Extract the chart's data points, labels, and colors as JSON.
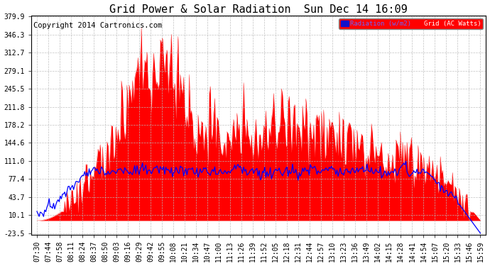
{
  "title": "Grid Power & Solar Radiation  Sun Dec 14 16:09",
  "copyright": "Copyright 2014 Cartronics.com",
  "legend_radiation": "Radiation (w/m2)",
  "legend_grid": "Grid (AC Watts)",
  "ymin": -23.5,
  "ymax": 379.9,
  "yticks": [
    -23.5,
    10.1,
    43.7,
    77.4,
    111.0,
    144.6,
    178.2,
    211.8,
    245.5,
    279.1,
    312.7,
    346.3,
    379.9
  ],
  "background_color": "#ffffff",
  "plot_bg_color": "#ffffff",
  "grid_color": "#bbbbbb",
  "bar_color": "#ff0000",
  "line_color": "#0000ff",
  "title_fontsize": 11,
  "copyright_fontsize": 7.5,
  "tick_fontsize": 7,
  "x_tick_labels": [
    "07:30",
    "07:44",
    "07:58",
    "08:11",
    "08:24",
    "08:37",
    "08:50",
    "09:03",
    "09:16",
    "09:29",
    "09:42",
    "09:55",
    "10:08",
    "10:21",
    "10:34",
    "10:47",
    "11:00",
    "11:13",
    "11:26",
    "11:39",
    "11:52",
    "12:05",
    "12:18",
    "12:31",
    "12:44",
    "12:57",
    "13:10",
    "13:23",
    "13:36",
    "13:49",
    "14:02",
    "14:15",
    "14:28",
    "14:41",
    "14:54",
    "15:07",
    "15:20",
    "15:33",
    "15:46",
    "15:59"
  ]
}
